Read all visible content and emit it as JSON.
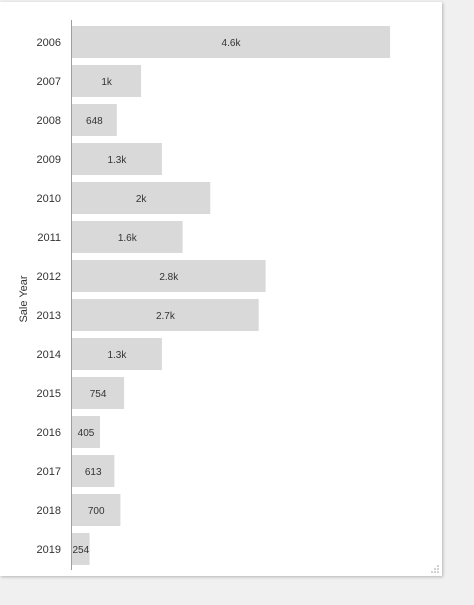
{
  "chart_data": {
    "type": "bar",
    "orientation": "horizontal",
    "ylabel": "Sale Year",
    "categories": [
      "2006",
      "2007",
      "2008",
      "2009",
      "2010",
      "2011",
      "2012",
      "2013",
      "2014",
      "2015",
      "2016",
      "2017",
      "2018",
      "2019"
    ],
    "values": [
      4600,
      1000,
      648,
      1300,
      2000,
      1600,
      2800,
      2700,
      1300,
      754,
      405,
      613,
      700,
      254
    ],
    "value_labels": [
      "4.6k",
      "1k",
      "648",
      "1.3k",
      "2k",
      "1.6k",
      "2.8k",
      "2.7k",
      "1.3k",
      "754",
      "405",
      "613",
      "700",
      "254"
    ],
    "xlim": [
      0,
      4700
    ],
    "bar_color": "#d9d9d9",
    "axis_color": "#9e9e9e"
  }
}
